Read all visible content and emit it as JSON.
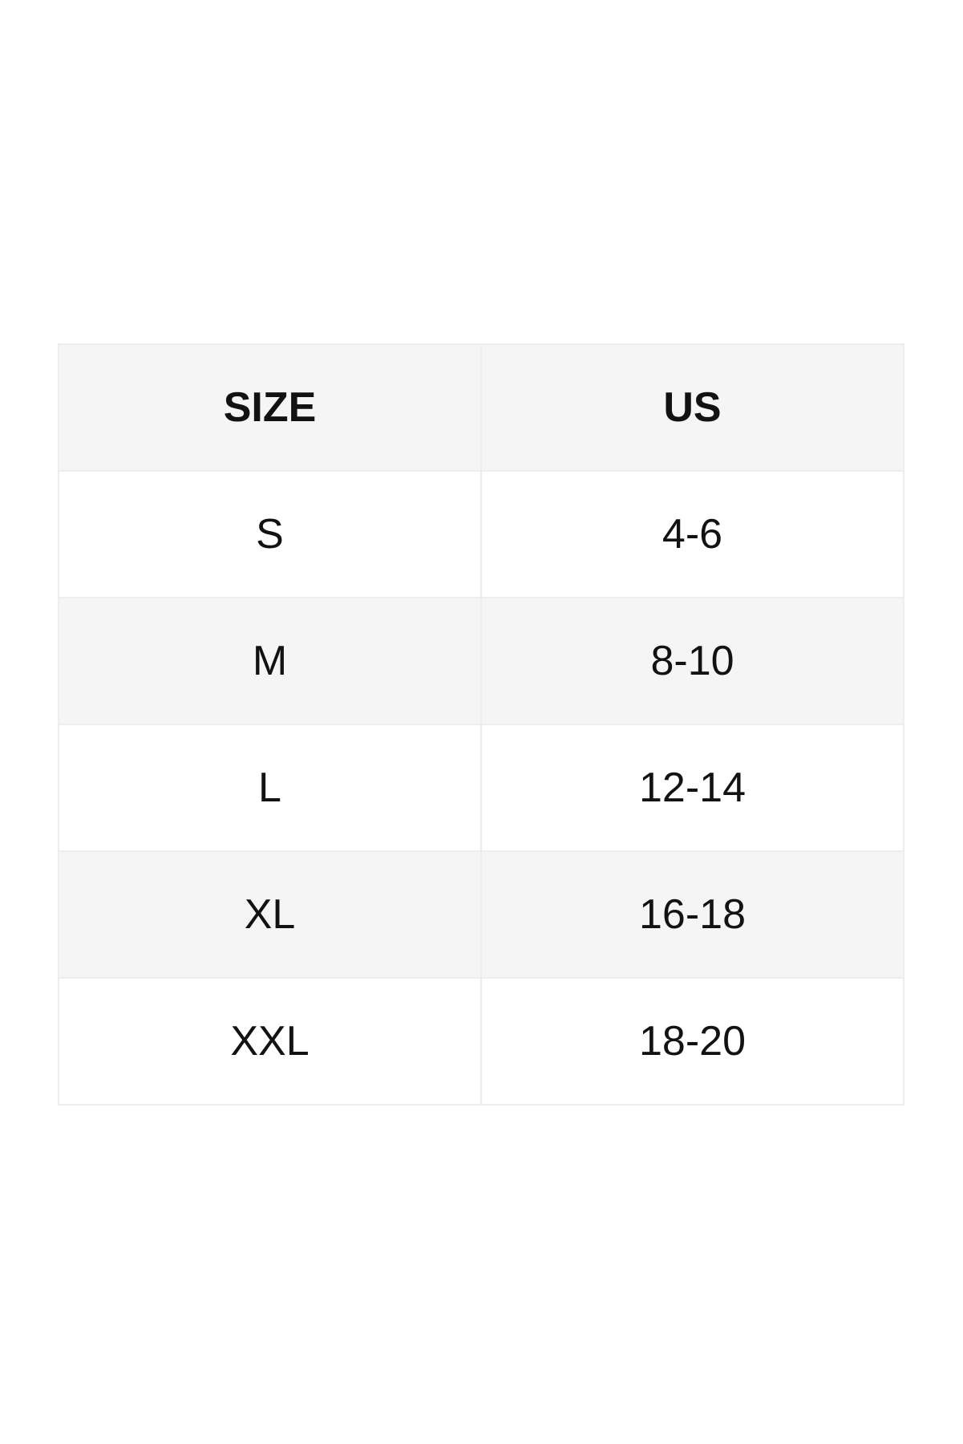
{
  "page": {
    "background": "#ffffff"
  },
  "size_chart": {
    "columns": [
      "SIZE",
      "US"
    ],
    "rows": [
      {
        "size": "S",
        "us": "4-6"
      },
      {
        "size": "M",
        "us": "8-10"
      },
      {
        "size": "L",
        "us": "12-14"
      },
      {
        "size": "XL",
        "us": "16-18"
      },
      {
        "size": "XXL",
        "us": "18-20"
      }
    ],
    "colors": {
      "header_bg": "#f5f5f5",
      "row_bg": "#ffffff",
      "row_alt_bg": "#f5f5f5",
      "border": "#ededed",
      "text": "#121212"
    }
  }
}
